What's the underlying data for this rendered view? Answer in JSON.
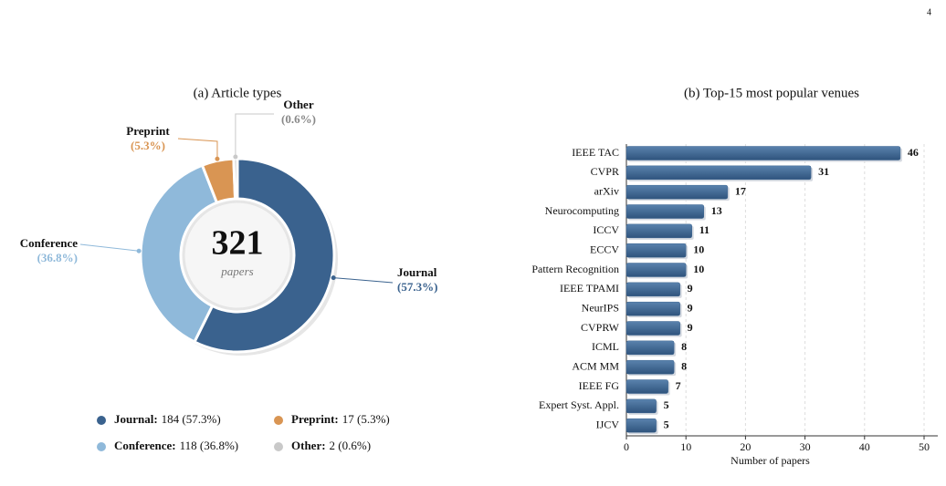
{
  "page_number": 4,
  "chart_data": [
    {
      "type": "donut",
      "title": "(a) Article types",
      "center_value": 321,
      "center_caption": "papers",
      "categories": [
        "Journal",
        "Conference",
        "Preprint",
        "Other"
      ],
      "values": [
        184,
        118,
        17,
        2
      ],
      "percent_labels": [
        "(57.3%)",
        "(36.8%)",
        "(5.3%)",
        "(0.6%)"
      ],
      "legend_names": [
        "Journal:",
        "Conference:",
        "Preprint:",
        "Other:"
      ],
      "value_labels": [
        "184 (57.3%)",
        "118 (36.8%)",
        "17 (5.3%)",
        "2 (0.6%)"
      ],
      "colors": [
        "#3a628e",
        "#8fb9da",
        "#d99553",
        "#c9c9c9"
      ]
    },
    {
      "type": "barh",
      "title": "(b) Top-15 most popular venues",
      "categories": [
        "IEEE TAC",
        "CVPR",
        "arXiv",
        "Neurocomputing",
        "ICCV",
        "ECCV",
        "Pattern Recognition",
        "IEEE TPAMI",
        "NeurIPS",
        "CVPRW",
        "ICML",
        "ACM MM",
        "IEEE FG",
        "Expert Syst. Appl.",
        "IJCV"
      ],
      "values": [
        46,
        31,
        17,
        13,
        11,
        10,
        10,
        9,
        9,
        9,
        8,
        8,
        7,
        5,
        5
      ],
      "color": "#3d6590",
      "xlim": [
        0,
        52.3
      ],
      "xticks": [
        0,
        10,
        20,
        30,
        40,
        50
      ],
      "xlabel": "Number of papers",
      "grid": true
    }
  ]
}
